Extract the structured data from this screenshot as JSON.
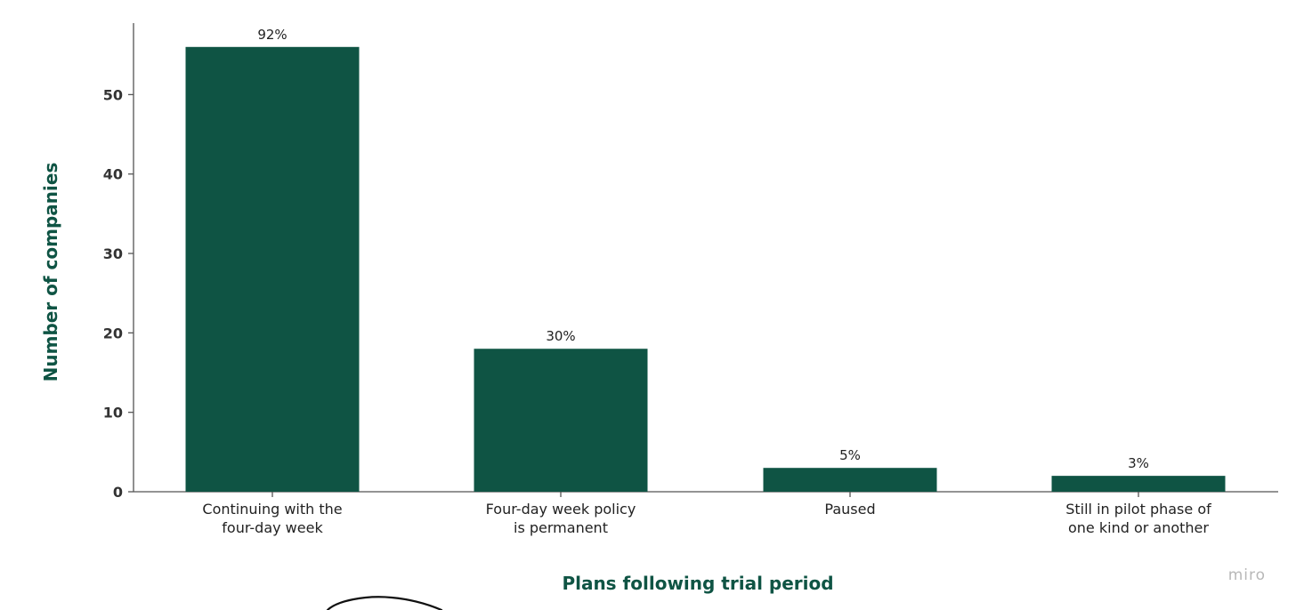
{
  "chart_data": {
    "type": "bar",
    "categories": [
      [
        "Continuing with the",
        "four-day week"
      ],
      [
        "Four-day week policy",
        "is permanent"
      ],
      [
        "Paused"
      ],
      [
        "Still in pilot phase of",
        "one kind or another"
      ]
    ],
    "values": [
      56,
      18,
      3,
      2
    ],
    "data_labels": [
      "92%",
      "30%",
      "5%",
      "3%"
    ],
    "title": "",
    "xlabel": "Plans following trial period",
    "ylabel": "Number of companies",
    "ylim": [
      0,
      59
    ],
    "yticks": [
      0,
      10,
      20,
      30,
      40,
      50
    ],
    "grid": false,
    "colors": {
      "bar": "#0f5444",
      "axis_title": "#0f5444",
      "axis_line": "#555555"
    }
  },
  "watermark": {
    "text": "miro"
  }
}
